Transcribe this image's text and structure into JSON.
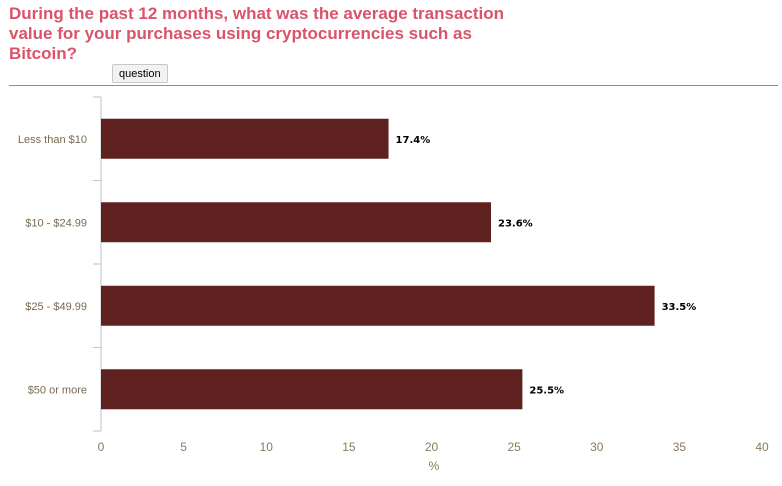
{
  "question_button_label": "question",
  "chart_data": {
    "type": "bar",
    "orientation": "horizontal",
    "title": "During the past 12 months, what was the average transaction value for your purchases using cryptocurrencies such as Bitcoin?",
    "categories": [
      "Less than $10",
      "$10 - $24.99",
      "$25 - $49.99",
      "$50 or more"
    ],
    "values": [
      17.4,
      23.6,
      33.5,
      25.5
    ],
    "data_labels": [
      "17.4%",
      "23.6%",
      "33.5%",
      "25.5%"
    ],
    "xlabel": "%",
    "ylabel": "",
    "xlim": [
      0,
      40
    ],
    "xticks": [
      0,
      5,
      10,
      15,
      20,
      25,
      30,
      35,
      40
    ],
    "grid": false,
    "legend": "none",
    "colors": {
      "bar": "#5e211f",
      "title": "#d9546a",
      "axis": "#b7c6cc",
      "divider": "#c9708a"
    }
  }
}
